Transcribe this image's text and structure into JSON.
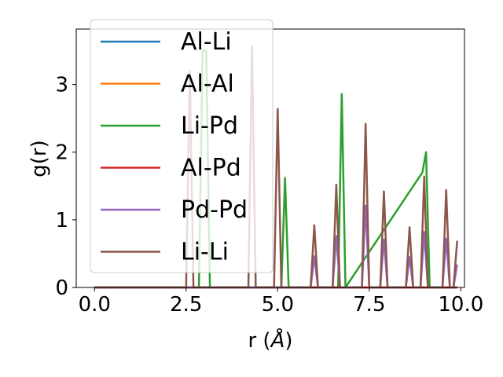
{
  "chart_data": {
    "type": "line",
    "xlabel_prefix": "r (",
    "xlabel_unit": "Å",
    "xlabel_suffix": ")",
    "ylabel": "g(r)",
    "xlim": [
      -0.5,
      10.1
    ],
    "ylim": [
      0,
      3.82
    ],
    "xticks": [
      0.0,
      2.5,
      5.0,
      7.5,
      10.0
    ],
    "xtick_labels": [
      "0.0",
      "2.5",
      "5.0",
      "7.5",
      "10.0"
    ],
    "yticks": [
      0,
      1,
      2,
      3
    ],
    "ytick_labels": [
      "0",
      "1",
      "2",
      "3"
    ],
    "grid": false,
    "legend_position": "upper-left",
    "series": [
      {
        "name": "Al-Li",
        "color": "#1f77b4",
        "x": [
          0,
          9.9
        ],
        "y": [
          0,
          0
        ]
      },
      {
        "name": "Al-Al",
        "color": "#ff7f0e",
        "x": [
          0,
          9.9
        ],
        "y": [
          0,
          0
        ]
      },
      {
        "name": "Li-Pd",
        "color": "#2ca02c",
        "x": [
          0,
          2.85,
          2.95,
          3.05,
          3.15,
          5.1,
          5.2,
          5.3,
          6.65,
          6.75,
          6.85,
          8.95,
          9.05,
          9.15,
          9.9
        ],
        "y": [
          0,
          0,
          3.5,
          3.5,
          0,
          0,
          1.62,
          0,
          0,
          2.86,
          0,
          1.7,
          2.0,
          0,
          0
        ]
      },
      {
        "name": "Al-Pd",
        "color": "#d62728",
        "x": [
          0,
          9.9
        ],
        "y": [
          0,
          0
        ]
      },
      {
        "name": "Pd-Pd",
        "color": "#9467bd",
        "x": [
          0,
          5.9,
          6.0,
          6.1,
          6.5,
          6.6,
          6.7,
          7.3,
          7.4,
          7.5,
          7.8,
          7.9,
          8.0,
          8.5,
          8.6,
          8.7,
          8.9,
          9.0,
          9.1,
          9.5,
          9.6,
          9.7,
          9.8,
          9.9
        ],
        "y": [
          0,
          0,
          0.46,
          0,
          0,
          0.76,
          0,
          0,
          1.21,
          0,
          0,
          0.71,
          0,
          0,
          0.45,
          0,
          0,
          0.82,
          0,
          0,
          0.72,
          0,
          0,
          0.34
        ]
      },
      {
        "name": "Li-Li",
        "color": "#8c564b",
        "x": [
          0,
          2.5,
          2.6,
          2.7,
          4.2,
          4.3,
          4.4,
          4.9,
          5.0,
          5.1,
          5.9,
          6.0,
          6.1,
          6.5,
          6.6,
          6.7,
          7.3,
          7.4,
          7.5,
          7.8,
          7.9,
          8.0,
          8.5,
          8.6,
          8.7,
          8.9,
          9.0,
          9.1,
          9.5,
          9.6,
          9.7,
          9.8,
          9.9
        ],
        "y": [
          0,
          0,
          3.2,
          0,
          0,
          3.56,
          0,
          0,
          2.64,
          0,
          0,
          0.92,
          0,
          0,
          1.52,
          0,
          0,
          2.42,
          0,
          0,
          1.42,
          0,
          0,
          0.89,
          0,
          0,
          1.64,
          0,
          0,
          1.44,
          0,
          0,
          0.69
        ]
      }
    ]
  }
}
